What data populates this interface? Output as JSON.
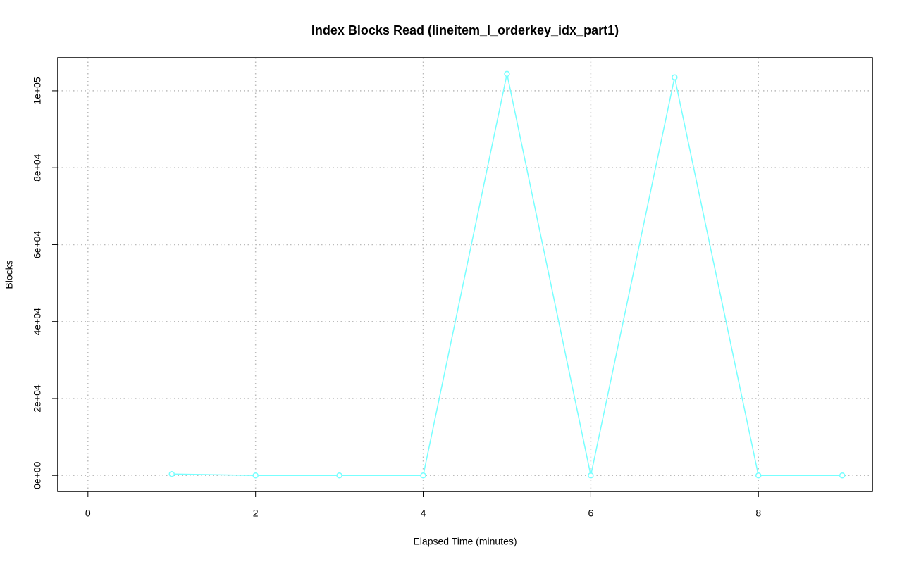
{
  "chart_data": {
    "type": "line",
    "title": "Index Blocks Read (lineitem_l_orderkey_idx_part1)",
    "x_label": "Elapsed Time (minutes)",
    "y_label": "Blocks",
    "grid": true,
    "xlim": [
      -0.36,
      9.36
    ],
    "ylim": [
      -4170,
      108590
    ],
    "xticks": [
      0,
      2,
      4,
      6,
      8
    ],
    "yticks": [
      {
        "value": 0,
        "label": "0e+00"
      },
      {
        "value": 20000,
        "label": "2e+04"
      },
      {
        "value": 40000,
        "label": "4e+04"
      },
      {
        "value": 60000,
        "label": "6e+04"
      },
      {
        "value": 80000,
        "label": "8e+04"
      },
      {
        "value": 100000,
        "label": "1e+05"
      }
    ],
    "series": [
      {
        "color": "#77ffff",
        "x": [
          1,
          2,
          3,
          4,
          5,
          6,
          7,
          8,
          9
        ],
        "values": [
          370,
          0,
          0,
          0,
          104400,
          0,
          103500,
          0,
          0
        ]
      }
    ]
  }
}
